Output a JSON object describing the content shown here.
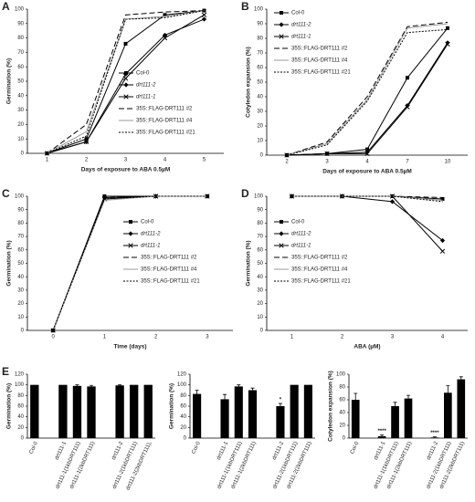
{
  "chart_data": [
    {
      "type": "line",
      "panel": "A",
      "x_label": "Days of exposure to ABA 0.5µM",
      "y_label": "Germination (%)",
      "categories": [
        "1",
        "2",
        "3",
        "4",
        "5"
      ],
      "ylim": [
        0,
        100
      ],
      "yticks": [
        0,
        10,
        20,
        30,
        40,
        50,
        60,
        70,
        80,
        90,
        100
      ],
      "series": [
        {
          "name": "Col-0",
          "color": "#000000",
          "dash": "solid",
          "marker": "square",
          "italic": false,
          "values": [
            0,
            10,
            76,
            96,
            99
          ]
        },
        {
          "name": "drt111-2",
          "color": "#000000",
          "dash": "solid",
          "marker": "diamond",
          "italic": true,
          "values": [
            0,
            8,
            55,
            82,
            93
          ]
        },
        {
          "name": "drt111-1",
          "color": "#000000",
          "dash": "solid",
          "marker": "x",
          "italic": true,
          "values": [
            0,
            8,
            52,
            80,
            96
          ]
        },
        {
          "name": "35S::FLAG-DRT111 #2",
          "color": "#000000",
          "dash": "long",
          "marker": "none",
          "italic": false,
          "values": [
            0,
            20,
            96,
            98,
            99
          ]
        },
        {
          "name": "35S::FLAG-DRT111 #4",
          "color": "#999999",
          "dash": "solid",
          "marker": "none",
          "italic": false,
          "values": [
            0,
            15,
            93,
            95,
            99
          ]
        },
        {
          "name": "35S::FLAG-DRT111 #21",
          "color": "#000000",
          "dash": "short",
          "marker": "none",
          "italic": false,
          "values": [
            0,
            12,
            93,
            94,
            99
          ]
        }
      ]
    },
    {
      "type": "line",
      "panel": "B",
      "x_label": "Days of exposure to ABA 0.5µM",
      "y_label": "Cotyledon expansion (%)",
      "categories": [
        "2",
        "3",
        "4",
        "7",
        "10"
      ],
      "ylim": [
        0,
        100
      ],
      "yticks": [
        0,
        10,
        20,
        30,
        40,
        50,
        60,
        70,
        80,
        90,
        100
      ],
      "series": [
        {
          "name": "Col-0",
          "color": "#000000",
          "dash": "solid",
          "marker": "square",
          "italic": false,
          "values": [
            0,
            1,
            4,
            53,
            87
          ]
        },
        {
          "name": "drt111-2",
          "color": "#000000",
          "dash": "solid",
          "marker": "diamond",
          "italic": true,
          "values": [
            0,
            1,
            2,
            34,
            77
          ]
        },
        {
          "name": "drt111-1",
          "color": "#000000",
          "dash": "solid",
          "marker": "x",
          "italic": true,
          "values": [
            0,
            1,
            1,
            33,
            76
          ]
        },
        {
          "name": "35S::FLAG-DRT111 #2",
          "color": "#000000",
          "dash": "long",
          "marker": "none",
          "italic": false,
          "values": [
            0,
            9,
            40,
            88,
            91
          ]
        },
        {
          "name": "35S::FLAG-DRT111 #4",
          "color": "#999999",
          "dash": "solid",
          "marker": "none",
          "italic": false,
          "values": [
            0,
            8,
            38,
            87,
            90
          ]
        },
        {
          "name": "35S::FLAG-DRT111 #21",
          "color": "#000000",
          "dash": "short",
          "marker": "none",
          "italic": false,
          "values": [
            0,
            7,
            37,
            84,
            86
          ]
        }
      ]
    },
    {
      "type": "line",
      "panel": "C",
      "x_label": "Time (days)",
      "y_label": "Germination (%)",
      "categories": [
        "0",
        "1",
        "2",
        "3"
      ],
      "ylim": [
        0,
        100
      ],
      "yticks": [
        0,
        10,
        20,
        30,
        40,
        50,
        60,
        70,
        80,
        90,
        100
      ],
      "series": [
        {
          "name": "Col-0",
          "color": "#000000",
          "dash": "solid",
          "marker": "square",
          "italic": false,
          "values": [
            0,
            100,
            100,
            100
          ]
        },
        {
          "name": "drt111-2",
          "color": "#000000",
          "dash": "solid",
          "marker": "diamond",
          "italic": true,
          "values": [
            0,
            99,
            100,
            100
          ]
        },
        {
          "name": "drt111-1",
          "color": "#000000",
          "dash": "solid",
          "marker": "x",
          "italic": true,
          "values": [
            0,
            98,
            100,
            100
          ]
        },
        {
          "name": "35S::FLAG-DRT111 #2",
          "color": "#000000",
          "dash": "long",
          "marker": "none",
          "italic": false,
          "values": [
            0,
            99,
            100,
            100
          ]
        },
        {
          "name": "35S::FLAG-DRT111 #4",
          "color": "#999999",
          "dash": "solid",
          "marker": "none",
          "italic": false,
          "values": [
            0,
            97,
            100,
            100
          ]
        },
        {
          "name": "35S::FLAG-DRT111 #21",
          "color": "#000000",
          "dash": "short",
          "marker": "none",
          "italic": false,
          "values": [
            0,
            98,
            100,
            100
          ]
        }
      ]
    },
    {
      "type": "line",
      "panel": "D",
      "x_label": "ABA (µM)",
      "y_label": "Germination (%)",
      "categories": [
        "1",
        "2",
        "3",
        "4"
      ],
      "ylim": [
        0,
        100
      ],
      "yticks": [
        0,
        10,
        20,
        30,
        40,
        50,
        60,
        70,
        80,
        90,
        100
      ],
      "series": [
        {
          "name": "Col-0",
          "color": "#000000",
          "dash": "solid",
          "marker": "square",
          "italic": false,
          "values": [
            100,
            100,
            100,
            98
          ]
        },
        {
          "name": "drt111-2",
          "color": "#000000",
          "dash": "solid",
          "marker": "diamond",
          "italic": true,
          "values": [
            100,
            100,
            96,
            67
          ]
        },
        {
          "name": "drt111-1",
          "color": "#000000",
          "dash": "solid",
          "marker": "x",
          "italic": true,
          "values": [
            100,
            100,
            100,
            59
          ]
        },
        {
          "name": "35S::FLAG-DRT111 #2",
          "color": "#000000",
          "dash": "long",
          "marker": "none",
          "italic": false,
          "values": [
            100,
            100,
            100,
            99
          ]
        },
        {
          "name": "35S::FLAG-DRT111 #4",
          "color": "#999999",
          "dash": "solid",
          "marker": "none",
          "italic": false,
          "values": [
            100,
            100,
            100,
            97
          ]
        },
        {
          "name": "35S::FLAG-DRT111 #21",
          "color": "#000000",
          "dash": "short",
          "marker": "none",
          "italic": false,
          "values": [
            100,
            100,
            100,
            96
          ]
        }
      ]
    },
    {
      "type": "bar",
      "panel": "E",
      "y_label": "Germination (%)",
      "color": "#000000",
      "categories": [
        "Col-0",
        null,
        "drt111-1",
        "drt111-1(1kbDRT111)",
        "drt111-1(2kbDRT111)",
        null,
        "drt111-2",
        "drt111-2(1kbDRT111)",
        "drt111-2(2kbDRT111),"
      ],
      "values": [
        100,
        null,
        100,
        98,
        97,
        null,
        99,
        100,
        100
      ],
      "errors": [
        0,
        null,
        0,
        2,
        2,
        null,
        1,
        0,
        0
      ],
      "ylim": [
        0,
        120
      ],
      "yticks": [
        0,
        20,
        40,
        60,
        80,
        100,
        120
      ],
      "annotations": []
    },
    {
      "type": "bar",
      "y_label": "Germination (%)",
      "color": "#000000",
      "categories": [
        "Col-0",
        null,
        "drt111-1",
        "drt111-1(1kbDRT111)",
        "drt111-1(2kbDRT111)",
        null,
        "drt111-2",
        "drt111-2(1kbDRT111)",
        "drt111-2(2kbDRT111)"
      ],
      "values": [
        83,
        null,
        73,
        97,
        90,
        null,
        60,
        100,
        100
      ],
      "errors": [
        7,
        null,
        9,
        3,
        4,
        null,
        5,
        0,
        0
      ],
      "ylim": [
        0,
        120
      ],
      "yticks": [
        0,
        20,
        40,
        60,
        80,
        100,
        120
      ],
      "annotations": [
        {
          "text": "*",
          "category": "drt111-2"
        }
      ]
    },
    {
      "type": "bar",
      "y_label": "Cotyledon expansion (%)",
      "color": "#000000",
      "categories": [
        "Col-0",
        null,
        "drt111-1",
        "drt111-1(1kbDRT111)",
        "drt111-1(2kbDRT111)",
        null,
        "drt111-2",
        "drt111-2(1kbDRT111)",
        "drt111-2(2kbDRT111)"
      ],
      "values": [
        60,
        null,
        3,
        50,
        62,
        null,
        1,
        71,
        92
      ],
      "errors": [
        10,
        null,
        2,
        6,
        5,
        null,
        1,
        11,
        4
      ],
      "ylim": [
        0,
        100
      ],
      "yticks": [
        0,
        20,
        40,
        60,
        80,
        100
      ],
      "annotations": [
        {
          "text": "****",
          "category": "drt111-1"
        },
        {
          "text": "****",
          "category": "drt111-2"
        }
      ]
    }
  ]
}
